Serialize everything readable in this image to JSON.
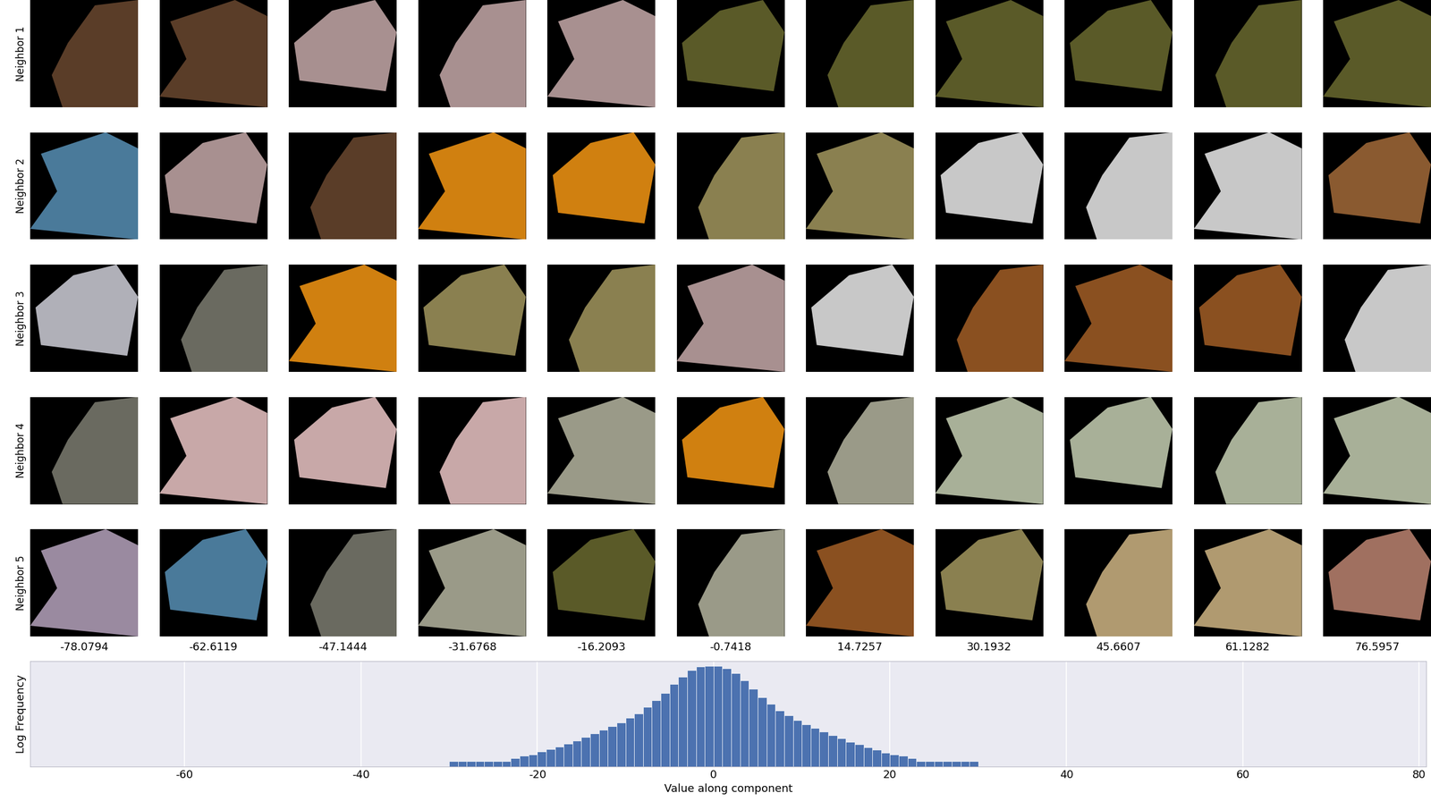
{
  "chart_data": {
    "type": "histogram",
    "xlabel": "Value along component",
    "ylabel": "Log Frequency",
    "log": "y",
    "grid": true,
    "tick_labels": "x",
    "color": "#4c72b0",
    "bins": [
      -30,
      -29,
      -28,
      -27,
      -26,
      -25,
      -24,
      -23,
      -22,
      -21,
      -20,
      -19,
      -18,
      -17,
      -16,
      -15,
      -14,
      -13,
      -12,
      -11,
      -10,
      -9,
      -8,
      -7,
      -6,
      -5,
      -4,
      -3,
      -2,
      -1,
      0,
      1,
      2,
      3,
      4,
      5,
      6,
      7,
      8,
      9,
      10,
      11,
      12,
      13,
      14,
      15,
      16,
      17,
      18,
      19,
      20,
      21,
      22,
      23,
      24,
      25,
      26,
      27,
      28,
      29,
      30
    ],
    "counts": [
      2,
      2,
      2,
      2,
      2,
      2,
      2,
      3,
      4,
      5,
      7,
      10,
      14,
      20,
      29,
      47,
      76,
      122,
      197,
      320,
      585,
      1070,
      2460,
      5700,
      14900,
      50000,
      130000,
      302000,
      490000,
      549000,
      520000,
      400000,
      200000,
      80000,
      26000,
      9000,
      3600,
      1600,
      800,
      450,
      260,
      160,
      100,
      62,
      40,
      26,
      18,
      13,
      9,
      6,
      5,
      4,
      3,
      2,
      2,
      2,
      2,
      2,
      2,
      2
    ],
    "xlim": [
      -77.5,
      80.8
    ],
    "xticks": [
      -60,
      -40,
      -20,
      0,
      20,
      40,
      60,
      80
    ],
    "ylim": [
      1,
      1000000
    ],
    "yticks": []
  },
  "image_grid": {
    "row_labels": [
      "Neighbor 1",
      "Neighbor 2",
      "Neighbor 3",
      "Neighbor 4",
      "Neighbor 5"
    ],
    "column_values": [
      -78.0794,
      -62.6119,
      -47.1444,
      -31.6768,
      -16.2093,
      -0.7418,
      14.7257,
      30.1932,
      45.6607,
      61.1282,
      76.5957
    ]
  }
}
